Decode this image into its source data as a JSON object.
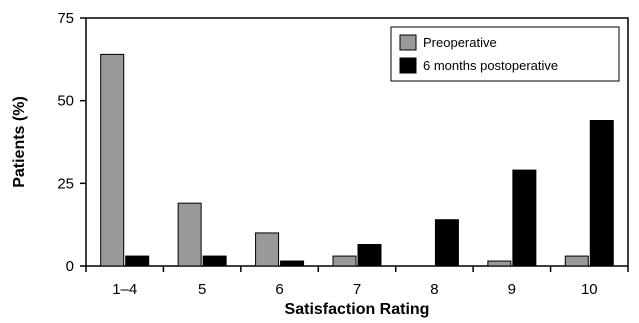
{
  "chart_data": {
    "type": "bar",
    "xlabel": "Satisfaction Rating",
    "ylabel": "Patients (%)",
    "categories": [
      "1–4",
      "5",
      "6",
      "7",
      "8",
      "9",
      "10"
    ],
    "ylim": [
      0,
      75
    ],
    "yticks": [
      0,
      25,
      50,
      75
    ],
    "grid": false,
    "legend_position": "top-right",
    "series": [
      {
        "name": "Preoperative",
        "color": "#999999",
        "values": [
          64,
          19,
          10,
          3,
          0,
          1.5,
          3
        ]
      },
      {
        "name": "6 months postoperative",
        "color": "#000000",
        "values": [
          3,
          3,
          1.5,
          6.5,
          14,
          29,
          44
        ]
      }
    ]
  }
}
